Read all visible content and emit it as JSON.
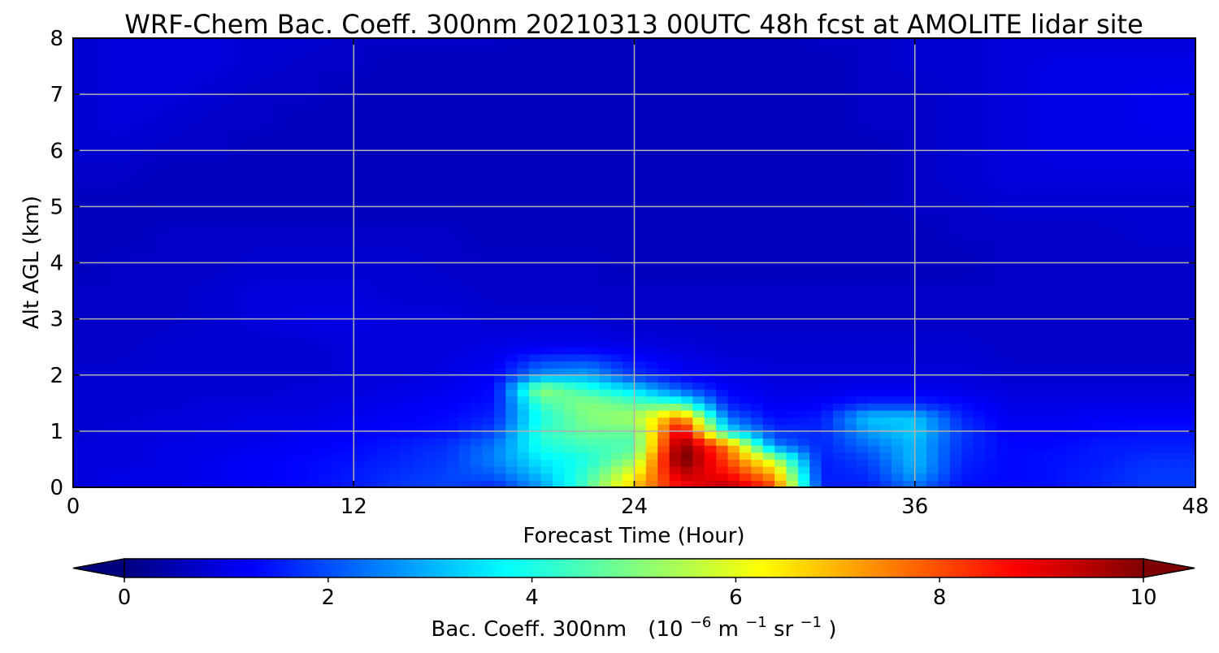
{
  "chart_data": {
    "type": "heatmap",
    "title": "WRF-Chem Bac. Coeff. 300nm  20210313 00UTC 48h fcst at AMOLITE lidar site",
    "xlabel": "Forecast Time (Hour)",
    "ylabel": "Alt AGL (km)",
    "xlim": [
      0,
      48
    ],
    "ylim": [
      0,
      8
    ],
    "xticks": [
      "0",
      "12",
      "24",
      "36",
      "48"
    ],
    "yticks": [
      "0",
      "1",
      "2",
      "3",
      "4",
      "5",
      "6",
      "7",
      "8"
    ],
    "grid": true,
    "colormap": "jet",
    "colorbar": {
      "label_main": "Bac. Coeff. 300nm",
      "label_open": "(10",
      "label_exp1": "−6",
      "label_m": " m",
      "label_exp2": "−1",
      "label_sr": " sr",
      "label_exp3": "−1",
      "label_close": ")",
      "range": [
        0,
        10
      ],
      "ticks": [
        "0",
        "2",
        "4",
        "6",
        "8",
        "10"
      ],
      "extend": "both"
    },
    "x": [
      0,
      2,
      4,
      6,
      8,
      10,
      12,
      14,
      16,
      18,
      20,
      22,
      24,
      26,
      28,
      30,
      32,
      34,
      36,
      38,
      40,
      42,
      44,
      46,
      48
    ],
    "y": [
      0,
      0.25,
      0.5,
      0.75,
      1,
      1.25,
      1.5,
      1.75,
      2,
      2.5,
      3,
      3.5,
      4,
      4.5,
      5,
      5.5,
      6,
      6.5,
      7,
      7.5,
      8
    ],
    "z": [
      [
        0.9,
        1.0,
        1.0,
        1.1,
        1.2,
        1.3,
        1.5,
        1.8,
        1.9,
        1.6,
        2.7,
        4.6,
        6.9,
        8.7,
        9.6,
        8.1,
        1.6,
        1.5,
        2.3,
        1.4,
        1.3,
        1.4,
        1.6,
        1.8,
        1.8
      ],
      [
        0.9,
        1.0,
        1.0,
        1.1,
        1.2,
        1.3,
        1.5,
        1.7,
        1.9,
        2.2,
        3.2,
        4.3,
        6.2,
        9.4,
        8.6,
        7.0,
        1.5,
        1.7,
        2.9,
        1.5,
        1.3,
        1.4,
        1.6,
        1.8,
        1.8
      ],
      [
        0.9,
        0.9,
        1.0,
        1.1,
        1.2,
        1.3,
        1.4,
        1.6,
        1.8,
        2.5,
        3.6,
        4.0,
        5.2,
        10.3,
        8.0,
        5.5,
        1.5,
        1.9,
        3.1,
        1.6,
        1.3,
        1.4,
        1.5,
        1.7,
        1.7
      ],
      [
        0.9,
        0.9,
        1.0,
        1.0,
        1.1,
        1.2,
        1.3,
        1.5,
        1.7,
        2.4,
        4.0,
        4.4,
        4.5,
        10.0,
        7.5,
        2.5,
        1.6,
        2.3,
        3.1,
        1.7,
        1.3,
        1.3,
        1.5,
        1.5,
        1.5
      ],
      [
        0.8,
        0.9,
        0.9,
        1.0,
        1.0,
        1.1,
        1.2,
        1.3,
        1.4,
        1.9,
        4.2,
        4.8,
        4.8,
        9.2,
        3.6,
        1.7,
        1.6,
        2.8,
        3.3,
        1.8,
        1.2,
        1.2,
        1.3,
        1.4,
        1.4
      ],
      [
        0.8,
        0.8,
        0.9,
        0.9,
        1.0,
        1.0,
        1.1,
        1.2,
        1.3,
        1.6,
        4.0,
        5.0,
        5.4,
        7.6,
        2.3,
        1.3,
        1.5,
        3.2,
        3.2,
        1.6,
        1.1,
        1.1,
        1.2,
        1.2,
        1.2
      ],
      [
        0.8,
        0.8,
        0.8,
        0.9,
        0.9,
        0.9,
        1.0,
        1.1,
        1.2,
        1.4,
        4.4,
        5.1,
        4.6,
        4.3,
        1.5,
        1.1,
        1.2,
        1.6,
        1.6,
        1.3,
        1.0,
        1.0,
        1.0,
        1.0,
        1.0
      ],
      [
        0.8,
        0.8,
        0.8,
        0.8,
        0.8,
        0.9,
        0.9,
        1.0,
        1.1,
        1.3,
        5.3,
        4.2,
        3.4,
        2.1,
        1.2,
        1.0,
        1.0,
        1.1,
        1.1,
        1.0,
        0.9,
        0.9,
        0.9,
        0.9,
        0.9
      ],
      [
        0.8,
        0.8,
        0.8,
        0.8,
        0.8,
        0.8,
        0.9,
        0.9,
        1.0,
        1.2,
        2.7,
        2.9,
        1.8,
        1.2,
        1.0,
        0.9,
        0.9,
        0.9,
        0.9,
        0.9,
        0.8,
        0.8,
        0.8,
        0.8,
        0.8
      ],
      [
        0.7,
        0.7,
        0.8,
        0.8,
        0.8,
        0.8,
        0.9,
        0.9,
        0.9,
        1.0,
        1.1,
        1.1,
        1.0,
        0.9,
        0.8,
        0.8,
        0.8,
        0.8,
        0.8,
        0.8,
        0.7,
        0.7,
        0.7,
        0.7,
        0.7
      ],
      [
        0.7,
        0.7,
        0.7,
        0.8,
        0.9,
        1.0,
        1.0,
        0.9,
        0.9,
        0.8,
        0.8,
        0.8,
        0.7,
        0.7,
        0.7,
        0.7,
        0.7,
        0.7,
        0.7,
        0.7,
        0.7,
        0.7,
        0.7,
        0.7,
        0.7
      ],
      [
        0.7,
        0.7,
        0.7,
        0.8,
        0.9,
        0.9,
        0.9,
        0.8,
        0.8,
        0.7,
        0.7,
        0.7,
        0.7,
        0.7,
        0.7,
        0.7,
        0.7,
        0.7,
        0.7,
        0.7,
        0.7,
        0.7,
        0.7,
        0.7,
        0.7
      ],
      [
        0.6,
        0.7,
        0.7,
        0.7,
        0.8,
        0.8,
        0.8,
        0.8,
        0.7,
        0.7,
        0.7,
        0.7,
        0.6,
        0.6,
        0.6,
        0.6,
        0.6,
        0.6,
        0.6,
        0.6,
        0.7,
        0.7,
        0.7,
        0.7,
        0.7
      ],
      [
        0.6,
        0.6,
        0.7,
        0.7,
        0.7,
        0.7,
        0.7,
        0.7,
        0.7,
        0.6,
        0.6,
        0.6,
        0.6,
        0.6,
        0.6,
        0.6,
        0.6,
        0.6,
        0.6,
        0.7,
        0.7,
        0.7,
        0.7,
        0.8,
        0.8
      ],
      [
        0.6,
        0.6,
        0.6,
        0.6,
        0.6,
        0.6,
        0.6,
        0.6,
        0.6,
        0.6,
        0.6,
        0.6,
        0.6,
        0.6,
        0.6,
        0.6,
        0.6,
        0.6,
        0.7,
        0.7,
        0.8,
        0.8,
        0.8,
        0.8,
        0.8
      ],
      [
        0.7,
        0.7,
        0.6,
        0.6,
        0.6,
        0.6,
        0.6,
        0.6,
        0.6,
        0.6,
        0.6,
        0.6,
        0.6,
        0.6,
        0.6,
        0.6,
        0.6,
        0.6,
        0.7,
        0.8,
        0.9,
        0.9,
        0.9,
        0.9,
        0.9
      ],
      [
        0.8,
        0.8,
        0.7,
        0.7,
        0.6,
        0.6,
        0.6,
        0.6,
        0.6,
        0.6,
        0.6,
        0.6,
        0.6,
        0.6,
        0.6,
        0.6,
        0.6,
        0.6,
        0.7,
        0.8,
        0.9,
        1.0,
        1.0,
        1.0,
        1.0
      ],
      [
        0.8,
        0.9,
        0.8,
        0.7,
        0.7,
        0.6,
        0.6,
        0.6,
        0.6,
        0.6,
        0.6,
        0.6,
        0.6,
        0.6,
        0.6,
        0.6,
        0.6,
        0.7,
        0.7,
        0.8,
        0.9,
        1.0,
        1.0,
        1.1,
        1.1
      ],
      [
        0.8,
        0.9,
        0.9,
        0.8,
        0.7,
        0.7,
        0.6,
        0.6,
        0.6,
        0.6,
        0.6,
        0.6,
        0.6,
        0.6,
        0.6,
        0.6,
        0.6,
        0.7,
        0.7,
        0.8,
        0.9,
        1.0,
        1.0,
        1.1,
        1.1
      ],
      [
        0.8,
        0.9,
        0.9,
        0.9,
        0.8,
        0.7,
        0.7,
        0.6,
        0.6,
        0.6,
        0.6,
        0.6,
        0.6,
        0.6,
        0.6,
        0.6,
        0.6,
        0.7,
        0.8,
        0.8,
        0.9,
        1.0,
        1.0,
        1.0,
        1.0
      ],
      [
        0.8,
        0.9,
        0.9,
        0.9,
        0.8,
        0.8,
        0.7,
        0.7,
        0.7,
        0.7,
        0.6,
        0.6,
        0.6,
        0.6,
        0.6,
        0.6,
        0.7,
        0.7,
        0.8,
        0.8,
        0.9,
        0.9,
        0.9,
        0.9,
        0.9
      ]
    ]
  }
}
